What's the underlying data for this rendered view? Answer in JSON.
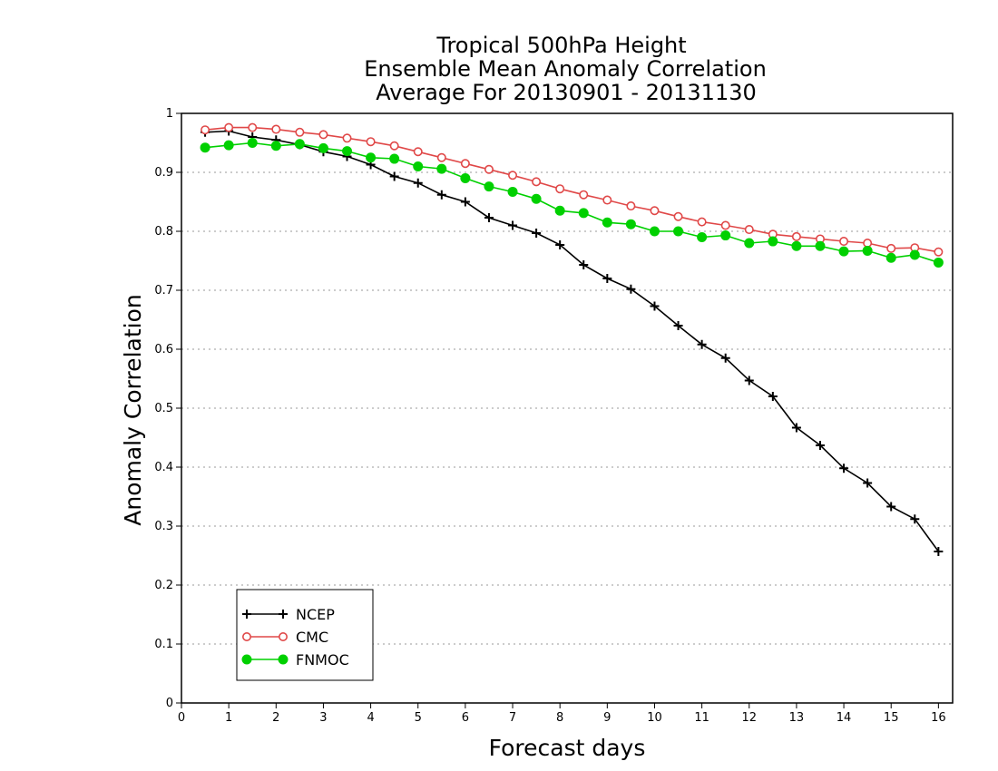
{
  "chart_data": {
    "type": "line",
    "title_lines": [
      "Tropical 500hPa Height",
      "Ensemble Mean Anomaly Correlation",
      "Average For 20130901 - 20131130"
    ],
    "xlabel": "Forecast days",
    "ylabel": "Anomaly Correlation",
    "xlim": [
      0,
      16.3
    ],
    "ylim": [
      0,
      1
    ],
    "xticks": [
      0,
      1,
      2,
      3,
      4,
      5,
      6,
      7,
      8,
      9,
      10,
      11,
      12,
      13,
      14,
      15,
      16
    ],
    "yticks": [
      0,
      0.1,
      0.2,
      0.3,
      0.4,
      0.5,
      0.6,
      0.7,
      0.8,
      0.9,
      1
    ],
    "ytick_labels": [
      "0",
      "0.1",
      "0.2",
      "0.3",
      "0.4",
      "0.5",
      "0.6",
      "0.7",
      "0.8",
      "0.9",
      "1"
    ],
    "grid": "horizontal dotted",
    "legend_position": "bottom-left",
    "x": [
      0.5,
      1.0,
      1.5,
      2.0,
      2.5,
      3.0,
      3.5,
      4.0,
      4.5,
      5.0,
      5.5,
      6.0,
      6.5,
      7.0,
      7.5,
      8.0,
      8.5,
      9.0,
      9.5,
      10.0,
      10.5,
      11.0,
      11.5,
      12.0,
      12.5,
      13.0,
      13.5,
      14.0,
      14.5,
      15.0,
      15.5,
      16.0
    ],
    "series": [
      {
        "name": "NCEP",
        "color": "#000000",
        "marker": "plus",
        "values": [
          0.968,
          0.97,
          0.96,
          0.955,
          0.947,
          0.935,
          0.927,
          0.913,
          0.893,
          0.882,
          0.862,
          0.85,
          0.823,
          0.81,
          0.797,
          0.777,
          0.743,
          0.72,
          0.702,
          0.673,
          0.64,
          0.608,
          0.585,
          0.547,
          0.52,
          0.467,
          0.437,
          0.398,
          0.373,
          0.333,
          0.312,
          0.257
        ]
      },
      {
        "name": "CMC",
        "color": "#e04848",
        "marker": "open-circle",
        "values": [
          0.972,
          0.976,
          0.976,
          0.973,
          0.968,
          0.964,
          0.958,
          0.952,
          0.945,
          0.935,
          0.925,
          0.915,
          0.905,
          0.895,
          0.884,
          0.872,
          0.862,
          0.853,
          0.843,
          0.835,
          0.825,
          0.816,
          0.81,
          0.803,
          0.795,
          0.791,
          0.787,
          0.783,
          0.78,
          0.771,
          0.772,
          0.765
        ]
      },
      {
        "name": "FNMOC",
        "color": "#00d000",
        "marker": "filled-circle",
        "values": [
          0.942,
          0.946,
          0.95,
          0.945,
          0.948,
          0.941,
          0.936,
          0.925,
          0.923,
          0.91,
          0.906,
          0.89,
          0.876,
          0.867,
          0.855,
          0.835,
          0.831,
          0.815,
          0.812,
          0.8,
          0.8,
          0.79,
          0.793,
          0.78,
          0.783,
          0.775,
          0.775,
          0.766,
          0.767,
          0.755,
          0.76,
          0.747
        ]
      }
    ]
  }
}
